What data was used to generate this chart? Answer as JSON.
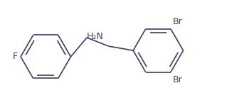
{
  "background": "#ffffff",
  "line_color": "#3c3c6e",
  "text_color": "#3c3c6e",
  "label_F": "F",
  "label_NH2": "H₂N",
  "label_Br1": "Br",
  "label_Br2": "Br",
  "fig_width": 3.19,
  "fig_height": 1.55,
  "dpi": 100
}
